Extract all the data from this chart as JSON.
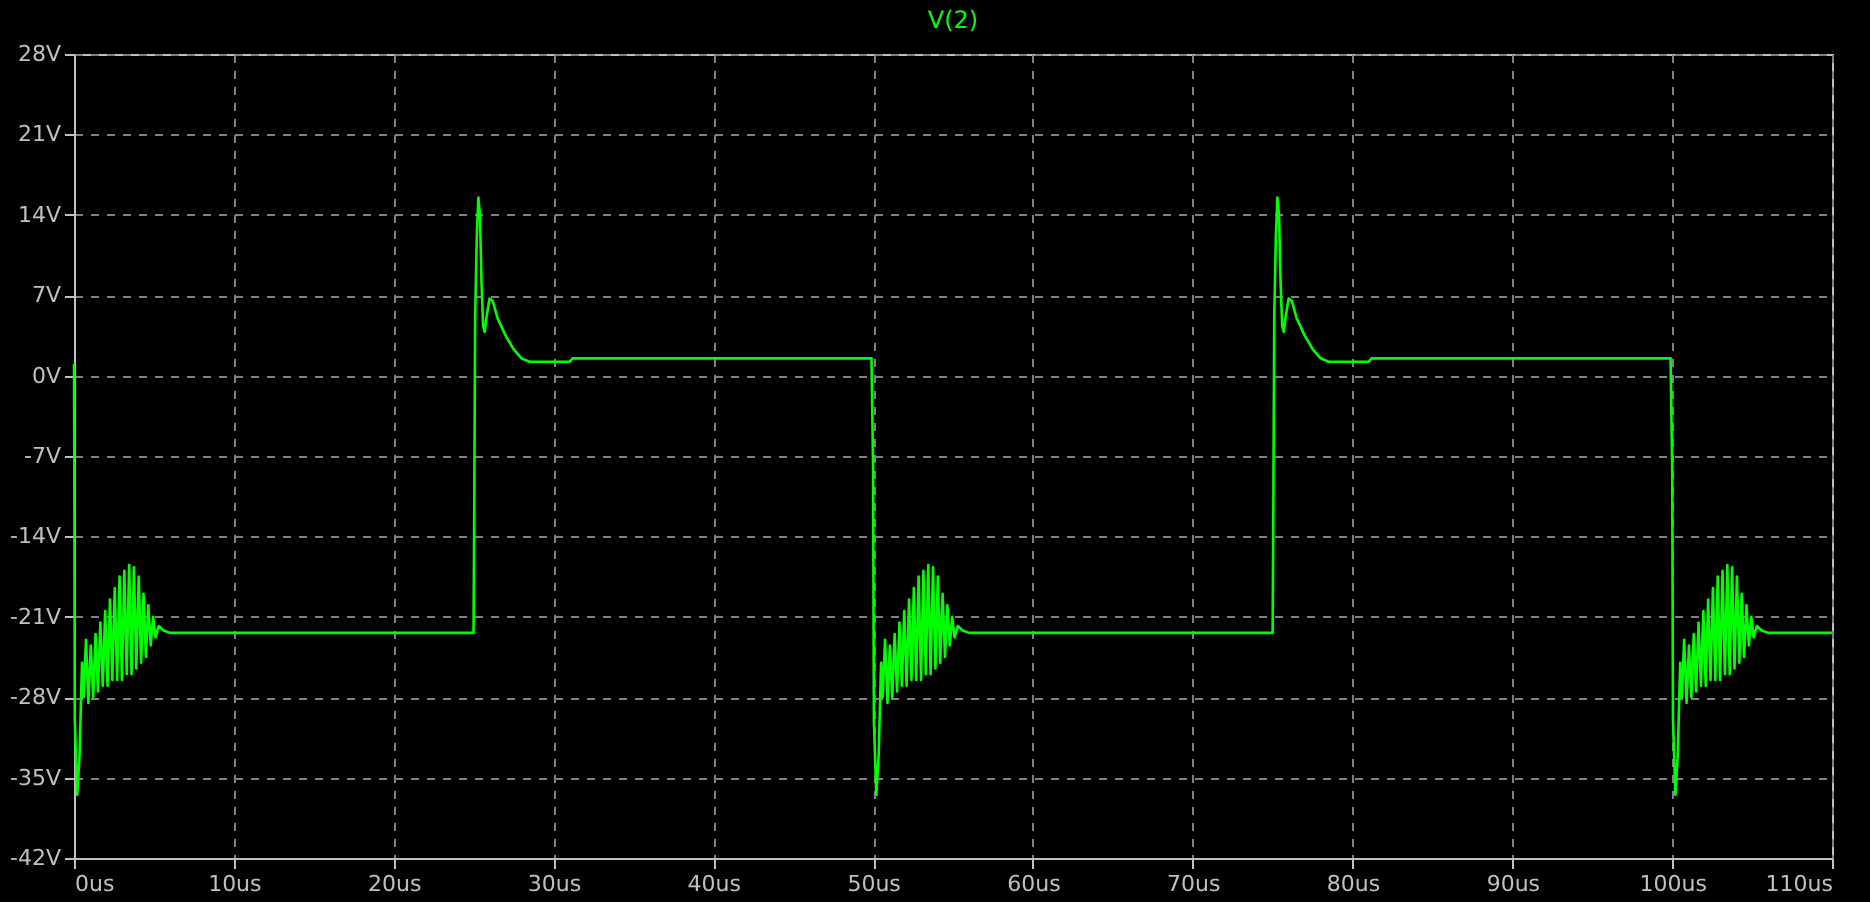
{
  "chart_data": {
    "type": "line",
    "title": "V(2)",
    "x": [
      0,
      0.02,
      0.05,
      0.2,
      0.35,
      0.5,
      0.6,
      0.75,
      0.9,
      1.05,
      1.2,
      1.35,
      1.5,
      1.65,
      1.8,
      1.95,
      2.1,
      2.25,
      2.4,
      2.55,
      2.7,
      2.85,
      3.0,
      3.15,
      3.3,
      3.45,
      3.6,
      3.75,
      3.9,
      4.05,
      4.2,
      4.35,
      4.5,
      4.65,
      4.8,
      4.95,
      5.1,
      5.3,
      5.6,
      6.0,
      25,
      25.05,
      25.1,
      25.2,
      25.3,
      25.4,
      25.5,
      25.6,
      25.7,
      25.8,
      26,
      26.2,
      26.5,
      27,
      27.5,
      28,
      28.5,
      31,
      31.2,
      49.9,
      50.0,
      50.05,
      50.2,
      50.35,
      50.5,
      50.6,
      50.75,
      50.9,
      51.05,
      51.2,
      51.35,
      51.5,
      51.65,
      51.8,
      51.95,
      52.1,
      52.25,
      52.4,
      52.55,
      52.7,
      52.85,
      53.0,
      53.15,
      53.3,
      53.45,
      53.6,
      53.75,
      53.9,
      54.05,
      54.2,
      54.35,
      54.5,
      54.65,
      54.8,
      54.95,
      55.1,
      55.3,
      55.6,
      56.0,
      75,
      75.05,
      75.1,
      75.2,
      75.3,
      75.4,
      75.5,
      75.6,
      75.7,
      75.8,
      76,
      76.2,
      76.5,
      77,
      77.5,
      78,
      78.5,
      81,
      81.2,
      99.9,
      100.0,
      100.05,
      100.2,
      100.35,
      100.5,
      100.6,
      100.75,
      100.9,
      101.05,
      101.2,
      101.35,
      101.5,
      101.65,
      101.8,
      101.95,
      102.1,
      102.25,
      102.4,
      102.55,
      102.7,
      102.85,
      103.0,
      103.15,
      103.3,
      103.45,
      103.6,
      103.75,
      103.9,
      104.05,
      104.2,
      104.35,
      104.5,
      104.65,
      104.8,
      104.95,
      105.1,
      105.3,
      105.6,
      106.0,
      110
    ],
    "series": [
      {
        "color": "#00ff00",
        "values": [
          1.0,
          -8,
          -30,
          -36.5,
          -33,
          -25,
          -28,
          -23,
          -28.5,
          -23.5,
          -28,
          -22.5,
          -27.5,
          -21.5,
          -27,
          -20.5,
          -27,
          -19.5,
          -26.5,
          -18.5,
          -26.5,
          -17.5,
          -26.5,
          -17,
          -26,
          -16.5,
          -26,
          -16.7,
          -25.5,
          -17.5,
          -25,
          -19,
          -24.5,
          -20,
          -23.5,
          -21,
          -22.8,
          -21.8,
          -22.2,
          -22.4,
          -22.4,
          -10,
          5,
          12,
          15.5,
          14,
          8,
          4.3,
          3.8,
          5,
          6.7,
          6.5,
          5,
          3.5,
          2.3,
          1.5,
          1.2,
          1.2,
          1.5,
          1.5,
          -8,
          -30,
          -36.5,
          -33,
          -25,
          -28,
          -23,
          -28.5,
          -23.5,
          -28,
          -22.5,
          -27.5,
          -21.5,
          -27,
          -20.5,
          -27,
          -19.5,
          -26.5,
          -18.5,
          -26.5,
          -17.5,
          -26.5,
          -17,
          -26,
          -16.5,
          -26,
          -16.7,
          -25.5,
          -17.5,
          -25,
          -19,
          -24.5,
          -20,
          -23.5,
          -21,
          -22.8,
          -21.8,
          -22.2,
          -22.4,
          -22.4,
          -10,
          5,
          12,
          15.5,
          14,
          8,
          4.3,
          3.8,
          5,
          6.7,
          6.5,
          5,
          3.5,
          2.3,
          1.5,
          1.2,
          1.2,
          1.5,
          1.5,
          -8,
          -30,
          -36.5,
          -33,
          -25,
          -28,
          -23,
          -28.5,
          -23.5,
          -28,
          -22.5,
          -27.5,
          -21.5,
          -27,
          -20.5,
          -27,
          -19.5,
          -26.5,
          -18.5,
          -26.5,
          -17.5,
          -26.5,
          -17,
          -26,
          -16.5,
          -26,
          -16.7,
          -25.5,
          -17.5,
          -25,
          -19,
          -24.5,
          -20,
          -23.5,
          -21,
          -22.8,
          -21.8,
          -22.2,
          -22.4,
          -22.4
        ]
      }
    ],
    "xlim": [
      0,
      110
    ],
    "xticks": [
      {
        "value": 0,
        "label": "0us"
      },
      {
        "value": 10,
        "label": "10us"
      },
      {
        "value": 20,
        "label": "20us"
      },
      {
        "value": 30,
        "label": "30us"
      },
      {
        "value": 40,
        "label": "40us"
      },
      {
        "value": 50,
        "label": "50us"
      },
      {
        "value": 60,
        "label": "60us"
      },
      {
        "value": 70,
        "label": "70us"
      },
      {
        "value": 80,
        "label": "80us"
      },
      {
        "value": 90,
        "label": "90us"
      },
      {
        "value": 100,
        "label": "100us"
      },
      {
        "value": 110,
        "label": "110us"
      }
    ],
    "ylim": [
      -42,
      28
    ],
    "yticks": [
      {
        "value": -42,
        "label": "-42V"
      },
      {
        "value": -35,
        "label": "-35V"
      },
      {
        "value": -28,
        "label": "-28V"
      },
      {
        "value": -21,
        "label": "-21V"
      },
      {
        "value": -14,
        "label": "-14V"
      },
      {
        "value": -7,
        "label": "-7V"
      },
      {
        "value": 0,
        "label": "0V"
      },
      {
        "value": 7,
        "label": "7V"
      },
      {
        "value": 14,
        "label": "14V"
      },
      {
        "value": 21,
        "label": "21V"
      },
      {
        "value": 28,
        "label": "28V"
      }
    ],
    "grid": true,
    "line_style": "solid",
    "marker": "none",
    "legend": false
  }
}
